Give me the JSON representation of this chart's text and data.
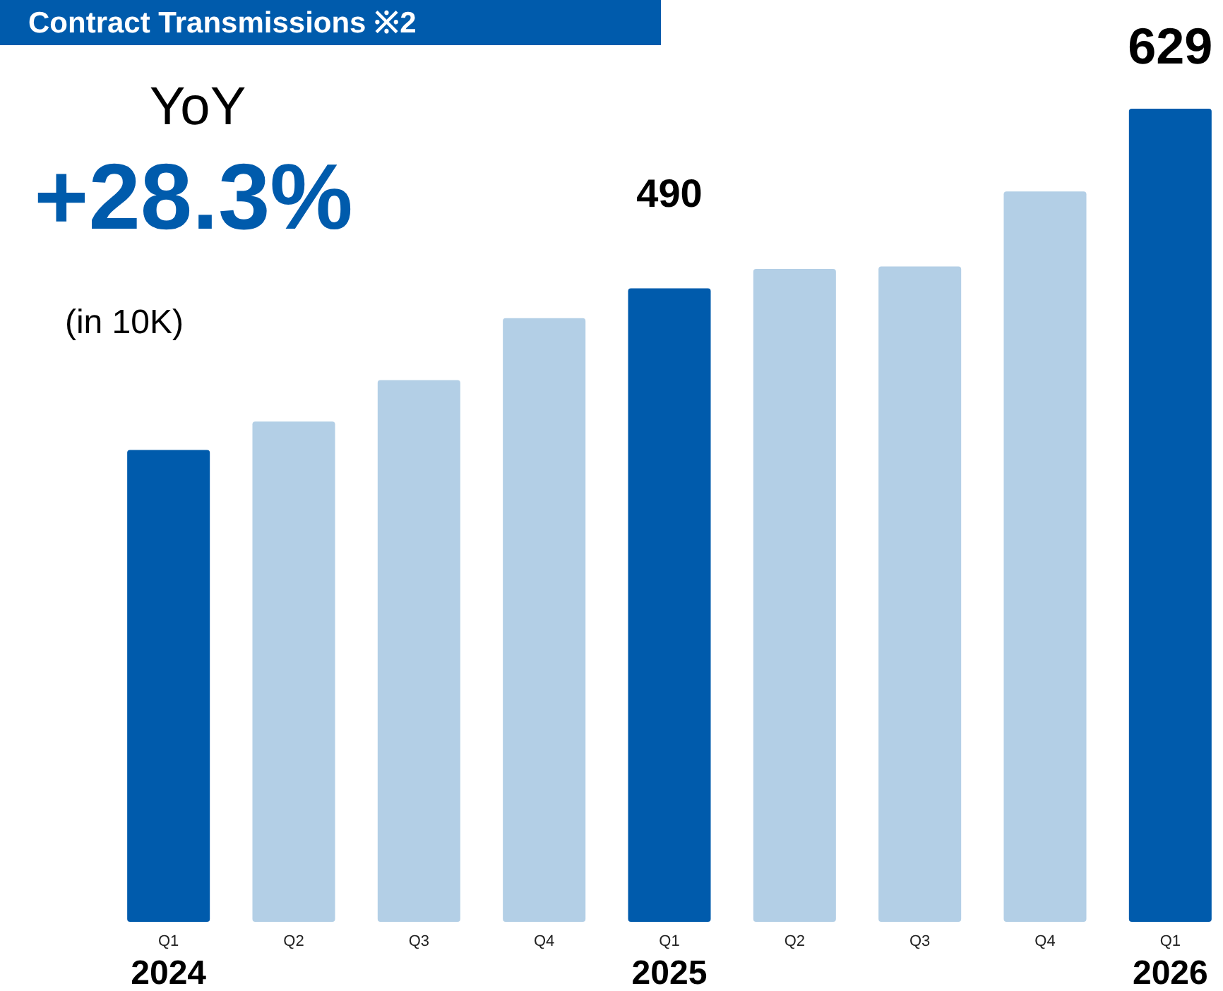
{
  "chart_data": {
    "type": "bar",
    "title": "Contract Transmissions ※2",
    "ylabel": "(in 10K)",
    "categories": [
      "Q1",
      "Q2",
      "Q3",
      "Q4",
      "Q1",
      "Q2",
      "Q3",
      "Q4",
      "Q1"
    ],
    "values": [
      365,
      387,
      419,
      467,
      490,
      505,
      507,
      565,
      629
    ],
    "colors": [
      "#005bac",
      "#b3cfe6",
      "#b3cfe6",
      "#b3cfe6",
      "#005bac",
      "#b3cfe6",
      "#b3cfe6",
      "#b3cfe6",
      "#005bac"
    ],
    "value_labels": [
      null,
      null,
      null,
      null,
      "490",
      null,
      null,
      null,
      "629"
    ],
    "annotations": [
      "YoY",
      "+28.3%",
      "2024",
      "2025",
      "2026"
    ]
  }
}
